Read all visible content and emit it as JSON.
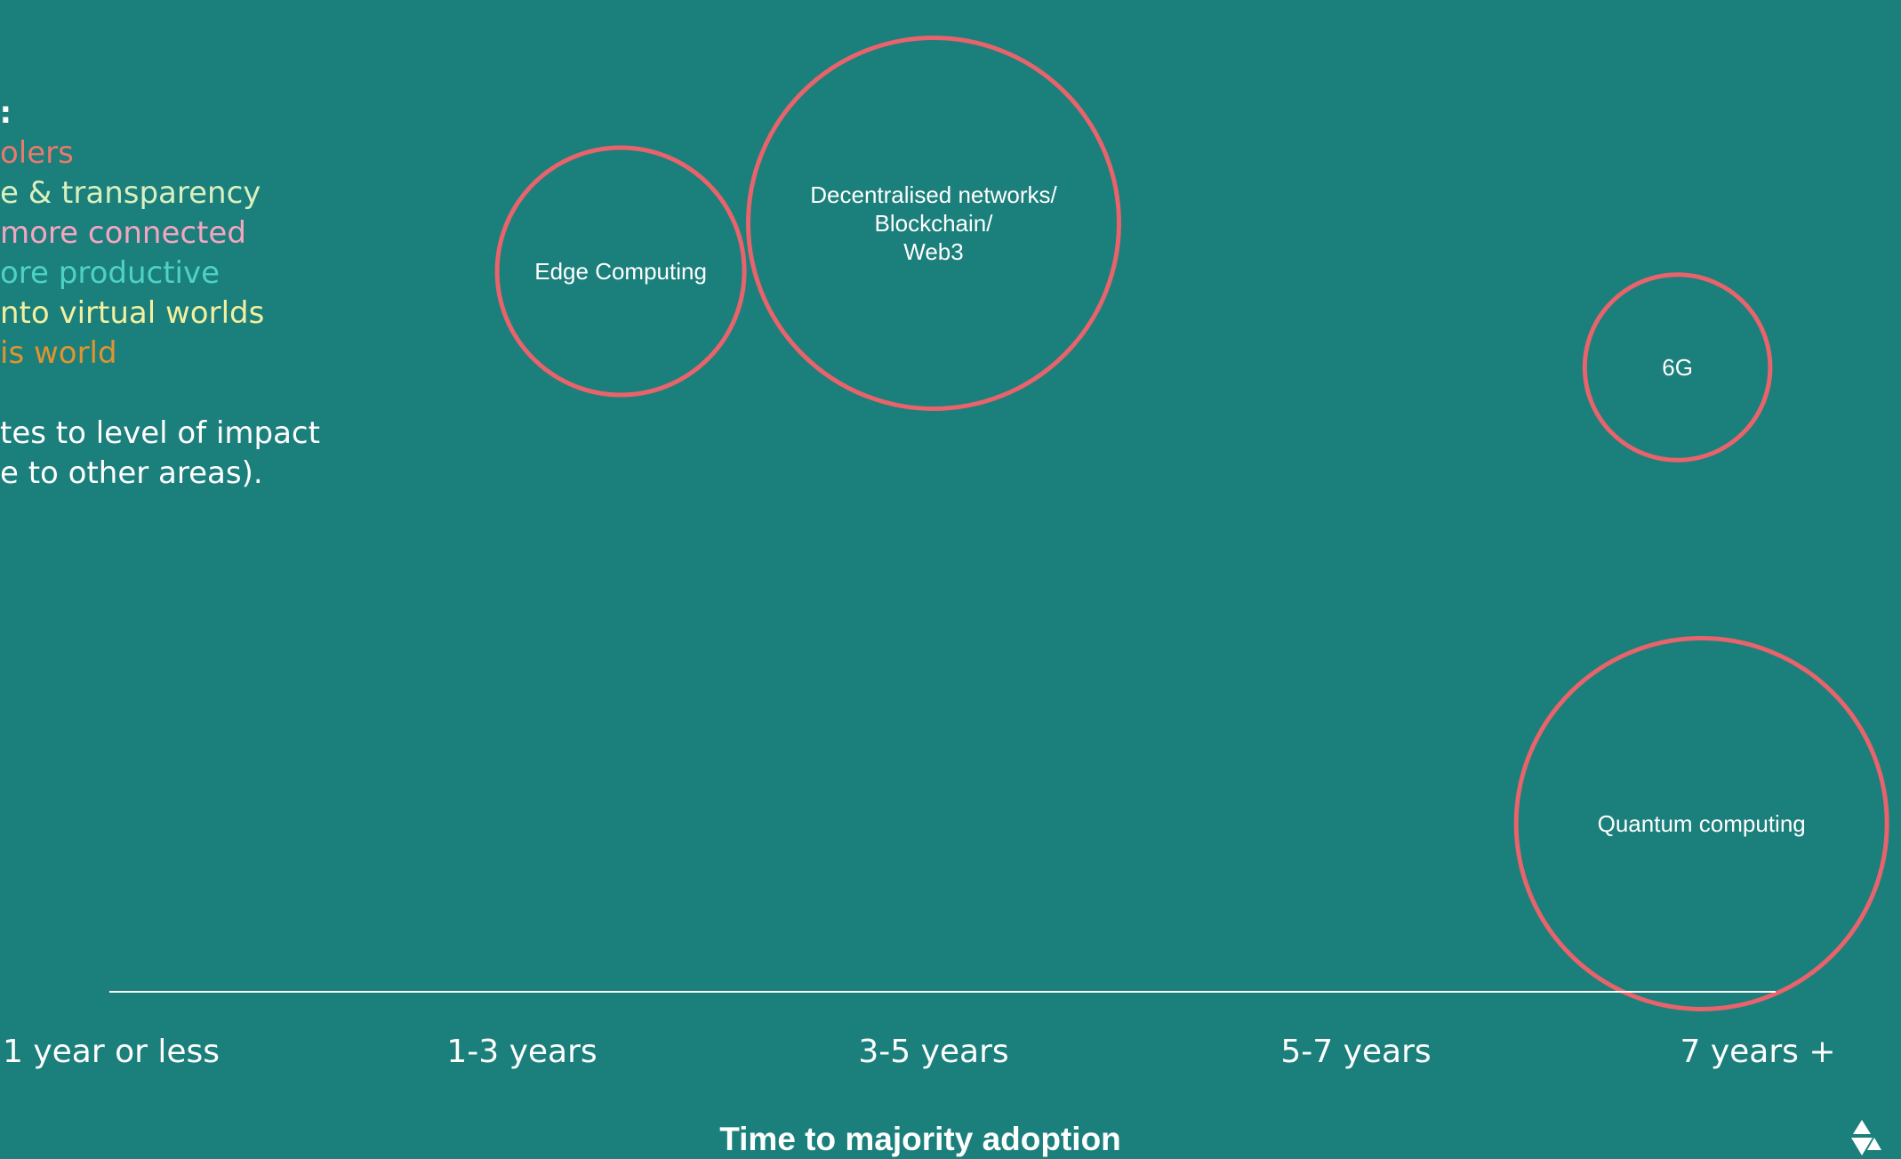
{
  "legend": {
    "title": "tion:",
    "items": [
      {
        "text": "olers",
        "color": "#e87a6e"
      },
      {
        "text": "e & transparency",
        "color": "#d9f0c0"
      },
      {
        "text": "more connected",
        "color": "#f4a6c1"
      },
      {
        "text": "ore productive",
        "color": "#4fd1c5"
      },
      {
        "text": "nto virtual worlds",
        "color": "#f2f0a0"
      },
      {
        "text": "is world",
        "color": "#e09430"
      }
    ],
    "note_line1": "tes to level of impact",
    "note_line2": "e to other areas)."
  },
  "logo_icon": "triangle-logo-icon",
  "chart_data": {
    "type": "scatter",
    "title": "",
    "xlabel": "Time to majority adoption",
    "ylabel": "",
    "categories": [
      "1 year or less",
      "1-3  years",
      "3-5 years",
      "5-7 years",
      "7 years +"
    ],
    "bubble_color": "#e8636b",
    "points": [
      {
        "label": [
          "Edge Computing"
        ],
        "x": 1.24,
        "impact": 3,
        "size": 2
      },
      {
        "label": [
          "Decentralised networks/",
          "Blockchain/",
          "Web3"
        ],
        "x": 2.0,
        "impact": 3.2,
        "size": 3
      },
      {
        "label": [
          "6G"
        ],
        "x": 3.8,
        "impact": 2.6,
        "size": 1.5
      },
      {
        "label": [
          "Quantum computing"
        ],
        "x": 3.86,
        "impact": 0.7,
        "size": 3
      }
    ]
  }
}
